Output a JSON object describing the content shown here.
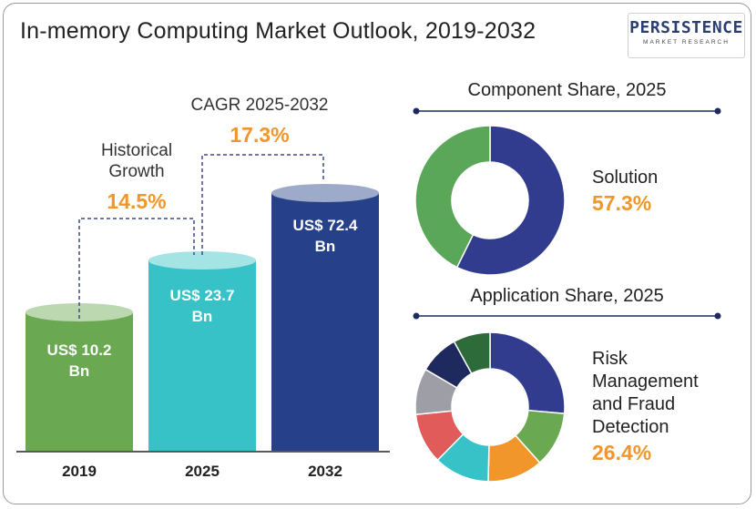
{
  "title": "In-memory Computing Market Outlook, 2019-2032",
  "logo": {
    "name": "PERSISTENCE",
    "sub": "MARKET RESEARCH"
  },
  "annotations": {
    "historical": {
      "line1": "Historical",
      "line2": "Growth",
      "value": "14.5%"
    },
    "cagr": {
      "label": "CAGR 2025-2032",
      "value": "17.3%"
    }
  },
  "chart_data": [
    {
      "type": "bar",
      "title": "",
      "categories": [
        "2019",
        "2025",
        "2032"
      ],
      "values": [
        10.2,
        23.7,
        72.4
      ],
      "unit": "US$ Bn",
      "labels": [
        {
          "line1": "US$ 10.2",
          "line2": "Bn"
        },
        {
          "line1": "US$ 23.7",
          "line2": "Bn"
        },
        {
          "line1": "US$ 72.4",
          "line2": "Bn"
        }
      ],
      "colors": [
        "#6aa851",
        "#36c2c6",
        "#26418a"
      ]
    },
    {
      "type": "pie",
      "title": "Component Share, 2025",
      "highlight": {
        "line1": "Solution",
        "value": "57.3%"
      },
      "slices": [
        {
          "name": "Solution",
          "value": 57.3,
          "color": "#323c8f"
        },
        {
          "name": "",
          "value": 42.7,
          "color": "#5aa759"
        }
      ]
    },
    {
      "type": "pie",
      "title": "Application Share, 2025",
      "highlight": {
        "lines": [
          "Risk",
          "Management",
          "and Fraud",
          "Detection"
        ],
        "value": "26.4%"
      },
      "slices": [
        {
          "name": "Risk Management and Fraud Detection",
          "value": 26.4,
          "color": "#323c8f"
        },
        {
          "name": "",
          "value": 12,
          "color": "#6aa851"
        },
        {
          "name": "",
          "value": 12,
          "color": "#f0962a"
        },
        {
          "name": "",
          "value": 12,
          "color": "#36c2c6"
        },
        {
          "name": "",
          "value": 11,
          "color": "#e15b5b"
        },
        {
          "name": "",
          "value": 10,
          "color": "#9e9ea6"
        },
        {
          "name": "",
          "value": 8.6,
          "color": "#1e2a5e"
        },
        {
          "name": "",
          "value": 8,
          "color": "#2e6b3a"
        }
      ]
    }
  ]
}
